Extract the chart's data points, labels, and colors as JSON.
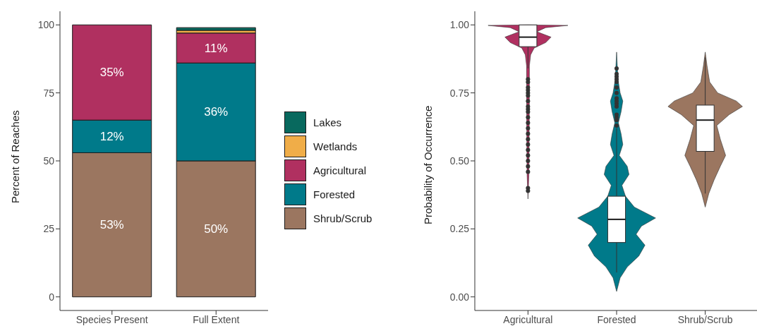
{
  "chart_data": [
    {
      "type": "bar",
      "stacked": true,
      "categories": [
        "Species Present",
        "Full Extent"
      ],
      "ylabel": "Percent of Reaches",
      "ylim": [
        -5,
        105
      ],
      "yticks": [
        0,
        25,
        50,
        75,
        100
      ],
      "grid": false,
      "legend": "right",
      "series": [
        {
          "name": "Shrub/Scrub",
          "color": "#9b7660",
          "values": [
            53,
            50
          ],
          "value_labels": [
            "53%",
            "50%"
          ]
        },
        {
          "name": "Forested",
          "color": "#007a8a",
          "values": [
            12,
            36
          ],
          "value_labels": [
            "12%",
            "36%"
          ]
        },
        {
          "name": "Agricultural",
          "color": "#b03060",
          "values": [
            35,
            11
          ],
          "value_labels": [
            "35%",
            "11%"
          ]
        },
        {
          "name": "Wetlands",
          "color": "#f0ad48",
          "values": [
            null,
            1
          ],
          "value_labels": [
            null,
            null
          ]
        },
        {
          "name": "Lakes",
          "color": "#08695e",
          "values": [
            null,
            1
          ],
          "value_labels": [
            null,
            null
          ]
        }
      ]
    },
    {
      "type": "box",
      "categories": [
        "Agricultural",
        "Forested",
        "Shrub/Scrub"
      ],
      "ylabel": "Probability of Occurrence",
      "ylim": [
        -0.05,
        1.05
      ],
      "yticks": [
        {
          "value": 0,
          "label": "0.00"
        },
        {
          "value": 0.25,
          "label": "0.25"
        },
        {
          "value": 0.5,
          "label": "0.50"
        },
        {
          "value": 0.75,
          "label": "0.75"
        },
        {
          "value": 1,
          "label": "1.00"
        }
      ],
      "grid": false,
      "boxes": [
        {
          "low": 0.84,
          "q1": 0.92,
          "median": 0.955,
          "q3": 1.0,
          "high": 1.0,
          "outliers": [
            0.8,
            0.79,
            0.77,
            0.76,
            0.75,
            0.74,
            0.72,
            0.7,
            0.69,
            0.68,
            0.66,
            0.64,
            0.62,
            0.6,
            0.58,
            0.56,
            0.54,
            0.52,
            0.5,
            0.48,
            0.46,
            0.4,
            0.39
          ]
        },
        {
          "low": 0.09,
          "q1": 0.2,
          "median": 0.285,
          "q3": 0.37,
          "high": 0.62,
          "outliers": [
            0.63,
            0.65,
            0.66,
            0.67,
            0.7,
            0.71,
            0.72,
            0.73,
            0.75,
            0.77,
            0.79,
            0.8,
            0.81,
            0.82,
            0.84
          ]
        },
        {
          "low": 0.38,
          "q1": 0.535,
          "median": 0.65,
          "q3": 0.705,
          "high": 0.88
        }
      ]
    }
  ]
}
